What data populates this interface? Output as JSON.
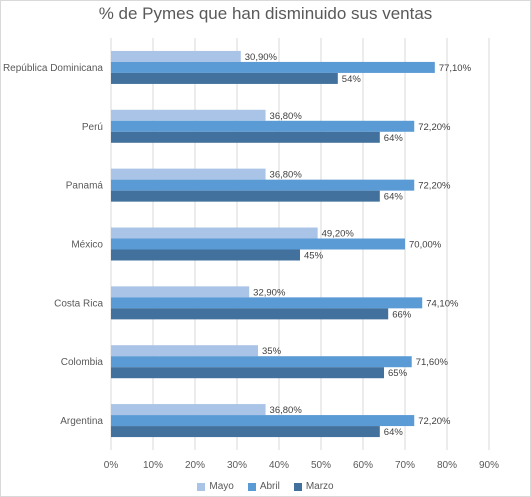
{
  "chart_data": {
    "type": "bar",
    "orientation": "horizontal",
    "title": "% de Pymes que han disminuido sus ventas",
    "categories": [
      "República Dominicana",
      "Perú",
      "Panamá",
      "México",
      "Costa Rica",
      "Colombia",
      "Argentina"
    ],
    "series": [
      {
        "name": "Mayo",
        "color": "#a9c4e6",
        "values": [
          30.9,
          36.8,
          36.8,
          49.2,
          32.9,
          35,
          36.8
        ],
        "labels": [
          "30,90%",
          "36,80%",
          "36,80%",
          "49,20%",
          "32,90%",
          "35%",
          "36,80%"
        ]
      },
      {
        "name": "Abril",
        "color": "#5b9bd5",
        "values": [
          77.1,
          72.2,
          72.2,
          70.0,
          74.1,
          71.6,
          72.2
        ],
        "labels": [
          "77,10%",
          "72,20%",
          "72,20%",
          "70,00%",
          "74,10%",
          "71,60%",
          "72,20%"
        ]
      },
      {
        "name": "Marzo",
        "color": "#41719c",
        "values": [
          54,
          64,
          64,
          45,
          66,
          65,
          64
        ],
        "labels": [
          "54%",
          "64%",
          "64%",
          "45%",
          "66%",
          "65%",
          "64%"
        ]
      }
    ],
    "xlim": [
      0,
      90
    ],
    "xticks": [
      "0%",
      "10%",
      "20%",
      "30%",
      "40%",
      "50%",
      "60%",
      "70%",
      "80%",
      "90%"
    ],
    "xtick_values": [
      0,
      10,
      20,
      30,
      40,
      50,
      60,
      70,
      80,
      90
    ],
    "grid": true,
    "legend_position": "bottom"
  }
}
